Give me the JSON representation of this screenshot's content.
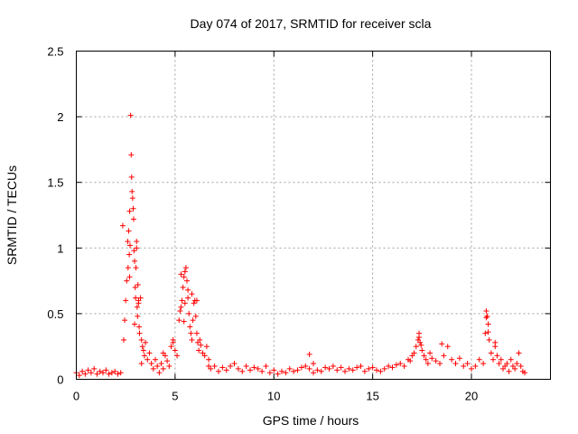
{
  "chart_data": {
    "type": "scatter",
    "title": "Day 074 of 2017, SRMTID for receiver scla",
    "xlabel": "GPS time / hours",
    "ylabel": "SRMTID / TECUs",
    "xlim": [
      0,
      24
    ],
    "ylim": [
      0,
      2.5
    ],
    "x_ticks": [
      0,
      5,
      10,
      15,
      20
    ],
    "x_tick_labels": [
      "0",
      "5",
      "10",
      "15",
      "20"
    ],
    "y_ticks": [
      0,
      0.5,
      1,
      1.5,
      2,
      2.5
    ],
    "y_tick_labels": [
      "0",
      "0.5",
      "1",
      "1.5",
      "2",
      "2.5"
    ],
    "grid": true,
    "marker": "+",
    "color": "#ff0000",
    "series": [
      {
        "name": "scla",
        "x": [
          0.0,
          0.15,
          0.3,
          0.45,
          0.6,
          0.75,
          0.9,
          1.05,
          1.2,
          1.35,
          1.5,
          1.65,
          1.8,
          1.95,
          2.1,
          2.25,
          2.4,
          2.45,
          2.5,
          2.55,
          2.6,
          2.62,
          2.65,
          2.68,
          2.7,
          2.72,
          2.75,
          2.78,
          2.8,
          2.82,
          2.85,
          2.88,
          2.9,
          2.92,
          2.95,
          2.98,
          3.0,
          3.02,
          3.05,
          3.08,
          3.1,
          3.12,
          3.15,
          3.18,
          3.2,
          3.25,
          3.3,
          3.35,
          3.4,
          3.45,
          3.5,
          3.6,
          3.7,
          3.8,
          3.9,
          4.0,
          4.1,
          4.2,
          4.3,
          4.4,
          4.5,
          4.6,
          4.7,
          4.8,
          4.9,
          5.0,
          5.1,
          5.2,
          5.25,
          5.3,
          5.35,
          5.4,
          5.45,
          5.5,
          5.55,
          5.6,
          5.65,
          5.7,
          5.75,
          5.8,
          5.85,
          5.9,
          5.95,
          6.0,
          6.05,
          6.1,
          6.15,
          6.2,
          6.3,
          6.4,
          6.5,
          6.6,
          6.7,
          6.8,
          7.0,
          7.2,
          7.4,
          7.6,
          7.8,
          8.0,
          8.2,
          8.4,
          8.6,
          8.8,
          9.0,
          9.2,
          9.4,
          9.6,
          9.8,
          10.0,
          10.2,
          10.4,
          10.6,
          10.8,
          11.0,
          11.2,
          11.4,
          11.6,
          11.8,
          12.0,
          12.2,
          12.4,
          12.6,
          12.8,
          13.0,
          13.2,
          13.4,
          13.6,
          13.8,
          14.0,
          14.2,
          14.4,
          14.6,
          14.8,
          15.0,
          15.2,
          15.4,
          15.6,
          15.8,
          16.0,
          16.2,
          16.4,
          16.6,
          16.8,
          17.0,
          17.1,
          17.2,
          17.3,
          17.35,
          17.4,
          17.45,
          17.5,
          17.6,
          17.7,
          17.8,
          17.9,
          18.0,
          18.2,
          18.4,
          18.6,
          18.8,
          19.0,
          19.2,
          19.4,
          19.6,
          19.8,
          20.0,
          20.2,
          20.4,
          20.6,
          20.7,
          20.75,
          20.8,
          20.85,
          20.9,
          21.0,
          21.1,
          21.2,
          21.3,
          21.4,
          21.5,
          21.6,
          21.7,
          21.8,
          21.9,
          22.0,
          22.1,
          22.2,
          22.3,
          22.4,
          22.5,
          22.6,
          22.7,
          2.35,
          2.7,
          3.05,
          3.15,
          2.95,
          5.3,
          5.5,
          5.65,
          5.45,
          5.85,
          6.1,
          6.25,
          11.8,
          17.35,
          18.5,
          20.75,
          20.85,
          21.2,
          3.3,
          4.4,
          4.9,
          6.7,
          12.0,
          16.9
        ],
        "y": [
          0.05,
          0.03,
          0.06,
          0.04,
          0.07,
          0.05,
          0.08,
          0.04,
          0.06,
          0.05,
          0.07,
          0.04,
          0.05,
          0.06,
          0.04,
          0.05,
          0.3,
          0.45,
          0.6,
          0.75,
          1.05,
          0.85,
          1.13,
          0.95,
          0.78,
          1.02,
          2.01,
          1.71,
          1.54,
          1.43,
          1.38,
          1.3,
          1.22,
          0.98,
          0.9,
          0.7,
          0.62,
          0.85,
          1.05,
          0.55,
          0.48,
          0.72,
          0.6,
          0.4,
          0.35,
          0.62,
          0.3,
          0.25,
          0.22,
          0.18,
          0.28,
          0.15,
          0.2,
          0.12,
          0.08,
          0.15,
          0.1,
          0.05,
          0.12,
          0.08,
          0.18,
          0.14,
          0.1,
          0.25,
          0.3,
          0.22,
          0.18,
          0.45,
          0.52,
          0.55,
          0.6,
          0.7,
          0.78,
          0.82,
          0.85,
          0.75,
          0.68,
          0.5,
          0.4,
          0.35,
          0.3,
          0.45,
          0.58,
          0.6,
          0.48,
          0.35,
          0.28,
          0.22,
          0.26,
          0.2,
          0.18,
          0.25,
          0.15,
          0.08,
          0.1,
          0.06,
          0.09,
          0.07,
          0.1,
          0.12,
          0.08,
          0.06,
          0.1,
          0.07,
          0.09,
          0.08,
          0.06,
          0.1,
          0.05,
          0.07,
          0.04,
          0.06,
          0.05,
          0.08,
          0.06,
          0.07,
          0.09,
          0.1,
          0.08,
          0.12,
          0.07,
          0.06,
          0.09,
          0.08,
          0.1,
          0.07,
          0.09,
          0.06,
          0.08,
          0.07,
          0.09,
          0.1,
          0.06,
          0.08,
          0.09,
          0.07,
          0.06,
          0.08,
          0.1,
          0.09,
          0.11,
          0.12,
          0.1,
          0.15,
          0.18,
          0.2,
          0.25,
          0.3,
          0.35,
          0.28,
          0.26,
          0.22,
          0.18,
          0.15,
          0.12,
          0.2,
          0.16,
          0.14,
          0.12,
          0.18,
          0.25,
          0.15,
          0.12,
          0.16,
          0.1,
          0.12,
          0.08,
          0.1,
          0.15,
          0.12,
          0.35,
          0.52,
          0.48,
          0.42,
          0.3,
          0.2,
          0.15,
          0.25,
          0.18,
          0.12,
          0.15,
          0.08,
          0.1,
          0.12,
          0.06,
          0.15,
          0.1,
          0.08,
          0.12,
          0.2,
          0.1,
          0.06,
          0.05,
          1.17,
          1.28,
          1.0,
          0.58,
          0.42,
          0.8,
          0.58,
          0.62,
          0.44,
          0.65,
          0.6,
          0.3,
          0.19,
          0.32,
          0.27,
          0.47,
          0.36,
          0.28,
          0.12,
          0.2,
          0.28,
          0.1,
          0.05,
          0.14
        ]
      }
    ]
  }
}
